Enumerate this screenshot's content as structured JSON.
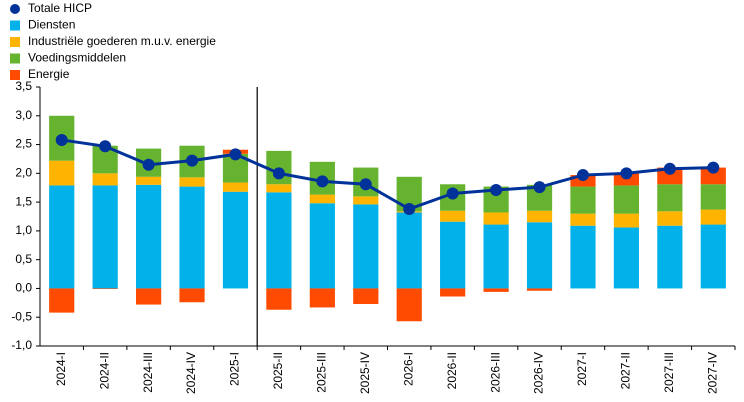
{
  "chart_data": {
    "type": "stacked-bar-line",
    "categories": [
      "2024-I",
      "2024-II",
      "2024-III",
      "2024-IV",
      "2025-I",
      "2025-II",
      "2025-III",
      "2025-IV",
      "2026-I",
      "2026-II",
      "2026-III",
      "2026-IV",
      "2027-I",
      "2027-II",
      "2027-III",
      "2027-IV"
    ],
    "series": [
      {
        "name": "Totale HICP",
        "color": "#003299",
        "kind": "line",
        "values": [
          2.58,
          2.47,
          2.15,
          2.22,
          2.33,
          2.0,
          1.86,
          1.81,
          1.38,
          1.65,
          1.71,
          1.76,
          1.97,
          2.0,
          2.08,
          2.1
        ]
      },
      {
        "name": "Diensten",
        "color": "#00b1ea",
        "kind": "bar",
        "values": [
          1.79,
          1.79,
          1.8,
          1.77,
          1.68,
          1.67,
          1.48,
          1.46,
          1.32,
          1.16,
          1.11,
          1.15,
          1.09,
          1.06,
          1.09,
          1.11
        ]
      },
      {
        "name": "Industriële goederen m.u.v. energie",
        "color": "#ffb400",
        "kind": "bar",
        "values": [
          0.43,
          0.21,
          0.14,
          0.16,
          0.16,
          0.14,
          0.15,
          0.14,
          0.02,
          0.19,
          0.21,
          0.2,
          0.21,
          0.24,
          0.25,
          0.26
        ]
      },
      {
        "name": "Voedingsmiddelen",
        "color": "#65b32e",
        "kind": "bar",
        "values": [
          0.78,
          0.48,
          0.49,
          0.55,
          0.5,
          0.58,
          0.57,
          0.5,
          0.6,
          0.46,
          0.45,
          0.45,
          0.47,
          0.49,
          0.47,
          0.44
        ]
      },
      {
        "name": "Energie",
        "color": "#ff4b00",
        "kind": "bar",
        "values": [
          -0.42,
          -0.01,
          -0.28,
          -0.24,
          0.07,
          -0.37,
          -0.33,
          -0.27,
          -0.57,
          -0.14,
          -0.06,
          -0.04,
          0.2,
          0.22,
          0.29,
          0.29
        ]
      }
    ],
    "ylim": [
      -1.0,
      3.5
    ],
    "yticks": [
      {
        "value": 3.5,
        "label": "3,5"
      },
      {
        "value": 3.0,
        "label": "3,0"
      },
      {
        "value": 2.5,
        "label": "2,5"
      },
      {
        "value": 2.0,
        "label": "2,0"
      },
      {
        "value": 1.5,
        "label": "1,5"
      },
      {
        "value": 1.0,
        "label": "1,0"
      },
      {
        "value": 0.5,
        "label": "0,5"
      },
      {
        "value": 0,
        "label": "0,0"
      },
      {
        "value": -0.5,
        "label": "-0,5"
      },
      {
        "value": -1.0,
        "label": "-1,0"
      }
    ],
    "grid": false,
    "legend": "top-left"
  }
}
